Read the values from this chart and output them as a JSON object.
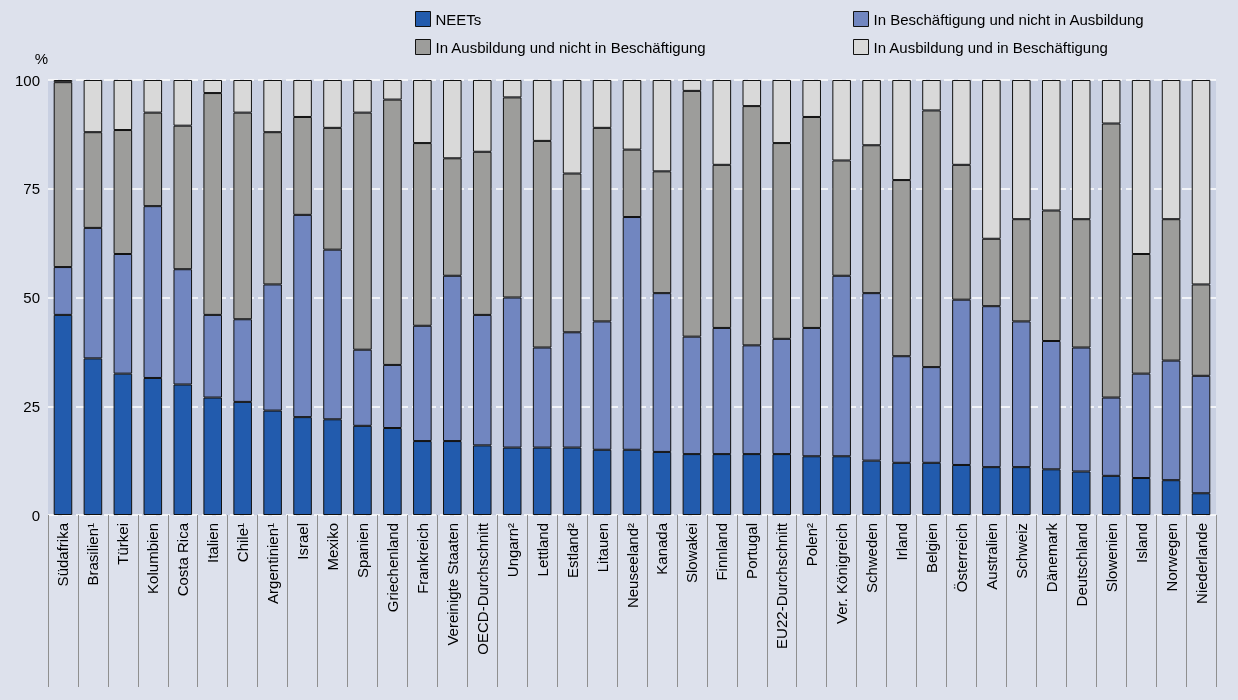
{
  "chart_data": {
    "type": "bar",
    "stacked": true,
    "ylabel": "%",
    "categories": [
      "Südafrika",
      "Brasilien¹",
      "Türkei",
      "Kolumbien",
      "Costa Rica",
      "Italien",
      "Chile¹",
      "Argentinien¹",
      "Israel",
      "Mexiko",
      "Spanien",
      "Griechenland",
      "Frankreich",
      "Vereinigte Staaten",
      "OECD-Durchschnitt",
      "Ungarn²",
      "Lettland",
      "Estland²",
      "Litauen",
      "Neuseeland²",
      "Kanada",
      "Slowakei",
      "Finnland",
      "Portugal",
      "EU22-Durchschnitt",
      "Polen²",
      "Ver. Königreich",
      "Schweden",
      "Irland",
      "Belgien",
      "Österreich",
      "Australien",
      "Schweiz",
      "Dänemark",
      "Deutschland",
      "Slowenien",
      "Island",
      "Norwegen",
      "Niederlande"
    ],
    "series": [
      {
        "name": "NEETs",
        "color": "#225bad",
        "values": [
          46,
          36,
          32.5,
          31.5,
          30,
          27,
          26,
          24,
          22.5,
          22,
          20.5,
          20,
          17,
          17,
          16,
          15.5,
          15.5,
          15.5,
          15,
          15,
          14.5,
          14,
          14,
          14,
          14,
          13.5,
          13.5,
          12.5,
          12,
          12,
          11.5,
          11,
          11,
          10.5,
          10,
          9,
          8.5,
          8,
          5
        ]
      },
      {
        "name": "In Beschäftigung und nicht in Ausbildung",
        "color": "#7186c0",
        "values": [
          11,
          30,
          27.5,
          39.5,
          26.5,
          19,
          19,
          29,
          46.5,
          39,
          17.5,
          14.5,
          26.5,
          38,
          30,
          34.5,
          23,
          26.5,
          29.5,
          53.5,
          36.5,
          27,
          29,
          25,
          26.5,
          29.5,
          41.5,
          38.5,
          24.5,
          22,
          38,
          37,
          33.5,
          29.5,
          28.5,
          18,
          24,
          27.5,
          27
        ]
      },
      {
        "name": "In Ausbildung und nicht in Beschäftigung",
        "color": "#9d9d9b",
        "values": [
          42.5,
          22,
          28.5,
          21.5,
          33,
          51,
          47.5,
          35,
          22.5,
          28,
          54.5,
          61,
          42,
          27,
          37.5,
          46,
          47.5,
          36.5,
          44.5,
          15.5,
          28,
          56.5,
          37.5,
          55,
          45,
          48.5,
          26.5,
          34,
          40.5,
          59,
          31,
          15.5,
          23.5,
          30,
          29.5,
          63,
          27.5,
          32.5,
          21
        ]
      },
      {
        "name": "In Ausbildung und in Beschäftigung",
        "color": "#d9d9d9",
        "values": [
          0.5,
          12,
          11.5,
          7.5,
          10.5,
          3,
          7.5,
          12,
          8.5,
          11,
          7.5,
          4.5,
          14.5,
          18,
          16.5,
          4,
          14,
          21.5,
          11,
          16,
          21,
          2.5,
          19.5,
          6,
          14.5,
          8.5,
          18.5,
          15,
          23,
          7,
          19.5,
          36.5,
          32,
          30,
          32,
          10,
          40,
          32,
          47
        ]
      }
    ],
    "ylim": [
      0,
      100
    ],
    "yticks": [
      0,
      25,
      50,
      75,
      100
    ],
    "grid": "y",
    "legend": "top right"
  }
}
